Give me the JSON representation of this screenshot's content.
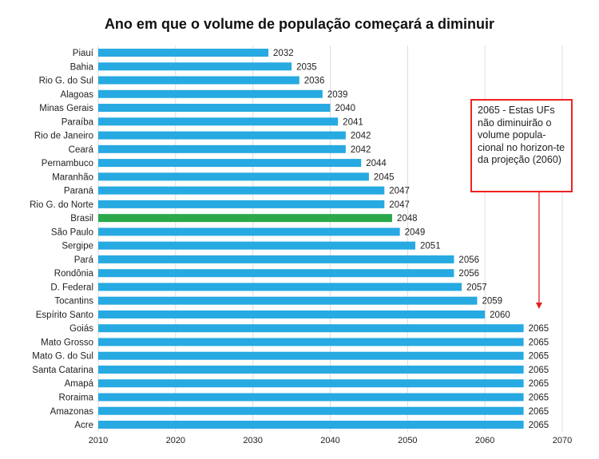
{
  "chart_data": {
    "type": "bar",
    "orientation": "horizontal",
    "title": "Ano em que o volume de população começará a diminuir",
    "categories": [
      "Piauí",
      "Bahia",
      "Rio G. do Sul",
      "Alagoas",
      "Minas Gerais",
      "Paraíba",
      "Rio de Janeiro",
      "Ceará",
      "Pernambuco",
      "Maranhão",
      "Paraná",
      "Rio G. do Norte",
      "Brasil",
      "São Paulo",
      "Sergipe",
      "Pará",
      "Rondônia",
      "D. Federal",
      "Tocantins",
      "Espírito Santo",
      "Goiás",
      "Mato Grosso",
      "Mato G. do Sul",
      "Santa Catarina",
      "Amapá",
      "Roraima",
      "Amazonas",
      "Acre"
    ],
    "values": [
      2032,
      2035,
      2036,
      2039,
      2040,
      2041,
      2042,
      2042,
      2044,
      2045,
      2047,
      2047,
      2048,
      2049,
      2051,
      2056,
      2056,
      2057,
      2059,
      2060,
      2065,
      2065,
      2065,
      2065,
      2065,
      2065,
      2065,
      2065
    ],
    "highlight": "Brasil",
    "xlim": [
      2010,
      2070
    ],
    "xticks": [
      2010,
      2020,
      2030,
      2040,
      2050,
      2060,
      2070
    ],
    "grid": true,
    "colors": {
      "bar": "#27a9e1",
      "highlight": "#2aa84a",
      "annotation": "#e22222",
      "grid": "#dddddd"
    },
    "annotation": {
      "text": "2065 - Estas UFs não diminuirão o volume popula-cional no horizon-te da projeção (2060)",
      "points_to": 2067
    }
  }
}
